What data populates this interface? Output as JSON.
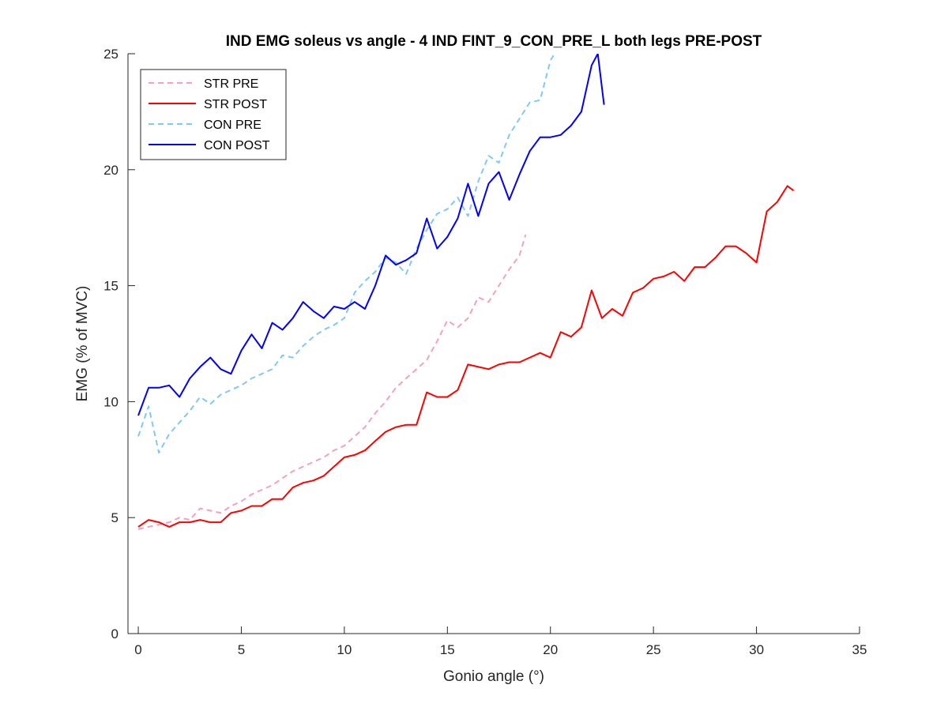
{
  "chart_data": {
    "type": "line",
    "title": "IND EMG soleus vs angle - 4 IND FINT_9_CON_PRE_L both legs PRE-POST",
    "xlabel": "Gonio angle (°)",
    "ylabel": "EMG (% of MVC)",
    "xlim": [
      -0.5,
      35
    ],
    "ylim": [
      0,
      25
    ],
    "xticks": [
      "0",
      "5",
      "10",
      "15",
      "20",
      "25",
      "30",
      "35"
    ],
    "yticks": [
      "0",
      "5",
      "10",
      "15",
      "20",
      "25"
    ],
    "grid": false,
    "legend_position": "top-left",
    "series": [
      {
        "name": "STR PRE",
        "color": "#f4a0be",
        "dash": "dashed",
        "x": [
          0,
          0.5,
          1,
          1.5,
          2,
          2.5,
          3,
          3.5,
          4,
          4.5,
          5,
          5.5,
          6,
          6.5,
          7,
          7.5,
          8,
          8.5,
          9,
          9.5,
          10,
          10.5,
          11,
          11.5,
          12,
          12.5,
          13,
          13.5,
          14,
          14.5,
          15,
          15.5,
          16,
          16.5,
          17,
          17.5,
          18,
          18.5,
          18.8
        ],
        "y": [
          4.5,
          4.6,
          4.7,
          4.8,
          5.0,
          4.9,
          5.4,
          5.3,
          5.2,
          5.5,
          5.7,
          6.0,
          6.2,
          6.4,
          6.7,
          7.0,
          7.2,
          7.4,
          7.6,
          7.9,
          8.1,
          8.5,
          8.9,
          9.5,
          10.0,
          10.6,
          11.0,
          11.4,
          11.8,
          12.6,
          13.5,
          13.2,
          13.6,
          14.5,
          14.3,
          15.0,
          15.7,
          16.3,
          17.2
        ]
      },
      {
        "name": "STR POST",
        "color": "#ff0000",
        "dash": "solid",
        "x": [
          0,
          0.5,
          1,
          1.5,
          2,
          2.5,
          3,
          3.5,
          4,
          4.5,
          5,
          5.5,
          6,
          6.5,
          7,
          7.5,
          8,
          8.5,
          9,
          9.5,
          10,
          10.5,
          11,
          11.5,
          12,
          12.5,
          13,
          13.5,
          14,
          14.5,
          15,
          15.5,
          16,
          16.5,
          17,
          17.5,
          18,
          18.5,
          19,
          19.5,
          20,
          20.5,
          21,
          21.5,
          22,
          22.5,
          23,
          23.5,
          24,
          24.5,
          25,
          25.5,
          26,
          26.5,
          27,
          27.5,
          28,
          28.5,
          29,
          29.5,
          30,
          30.5,
          31,
          31.5,
          31.8
        ],
        "y": [
          4.6,
          4.9,
          4.8,
          4.6,
          4.8,
          4.8,
          4.9,
          4.8,
          4.8,
          5.2,
          5.3,
          5.5,
          5.5,
          5.8,
          5.8,
          6.3,
          6.5,
          6.6,
          6.8,
          7.2,
          7.6,
          7.7,
          7.9,
          8.3,
          8.7,
          8.9,
          9.0,
          9.0,
          10.4,
          10.2,
          10.2,
          10.5,
          11.6,
          11.5,
          11.4,
          11.6,
          11.7,
          11.7,
          11.9,
          12.1,
          11.9,
          13.0,
          12.8,
          13.2,
          14.8,
          13.6,
          14.0,
          13.7,
          14.7,
          14.9,
          15.3,
          15.4,
          15.6,
          15.2,
          15.8,
          15.8,
          16.2,
          16.7,
          16.7,
          16.4,
          16.0,
          18.2,
          18.6,
          19.3,
          19.1
        ]
      },
      {
        "name": "CON PRE",
        "color": "#7fc8f8",
        "dash": "dashed",
        "x": [
          0,
          0.5,
          1,
          1.5,
          2,
          2.5,
          3,
          3.5,
          4,
          4.5,
          5,
          5.5,
          6,
          6.5,
          7,
          7.5,
          8,
          8.5,
          9,
          9.5,
          10,
          10.5,
          11,
          11.5,
          12,
          12.5,
          13,
          13.5,
          14,
          14.5,
          15,
          15.5,
          16,
          16.5,
          17,
          17.5,
          18,
          18.5,
          19,
          19.5,
          20,
          20.2
        ],
        "y": [
          8.5,
          9.8,
          7.8,
          8.6,
          9.1,
          9.6,
          10.2,
          9.9,
          10.3,
          10.5,
          10.7,
          11.0,
          11.2,
          11.4,
          12.0,
          11.9,
          12.4,
          12.8,
          13.1,
          13.3,
          13.6,
          14.7,
          15.2,
          15.6,
          16.2,
          16.0,
          15.5,
          16.6,
          17.4,
          18.1,
          18.3,
          18.8,
          18.0,
          19.5,
          20.6,
          20.3,
          21.5,
          22.2,
          22.9,
          23.0,
          24.7,
          25.0
        ]
      },
      {
        "name": "CON POST",
        "color": "#0000ff",
        "dash": "solid",
        "x": [
          0,
          0.5,
          1,
          1.5,
          2,
          2.5,
          3,
          3.5,
          4,
          4.5,
          5,
          5.5,
          6,
          6.5,
          7,
          7.5,
          8,
          8.5,
          9,
          9.5,
          10,
          10.5,
          11,
          11.5,
          12,
          12.5,
          13,
          13.5,
          14,
          14.5,
          15,
          15.5,
          16,
          16.5,
          17,
          17.5,
          18,
          18.5,
          19,
          19.5,
          20,
          20.5,
          21,
          21.5,
          22,
          22.3,
          22.6
        ],
        "y": [
          9.4,
          10.6,
          10.6,
          10.7,
          10.2,
          11.0,
          11.5,
          11.9,
          11.4,
          11.2,
          12.2,
          12.9,
          12.3,
          13.4,
          13.1,
          13.6,
          14.3,
          13.9,
          13.6,
          14.1,
          14.0,
          14.3,
          14.0,
          15.0,
          16.3,
          15.9,
          16.1,
          16.4,
          17.9,
          16.6,
          17.1,
          17.9,
          19.4,
          18.0,
          19.4,
          19.9,
          18.7,
          19.8,
          20.8,
          21.4,
          21.4,
          21.5,
          21.9,
          22.5,
          24.5,
          25.0,
          22.8
        ]
      }
    ]
  }
}
